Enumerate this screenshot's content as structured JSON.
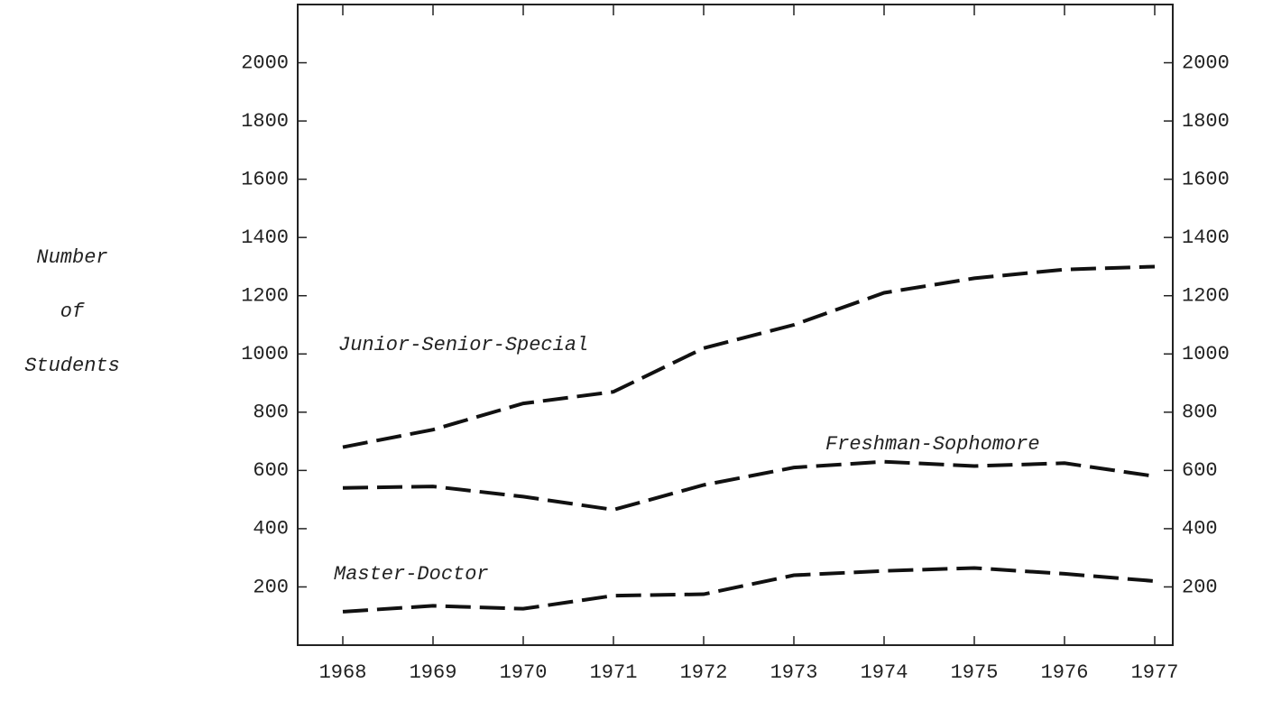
{
  "chart_data": {
    "type": "line",
    "ylabel_lines": [
      "Number",
      "of",
      "Students"
    ],
    "categories": [
      "1968",
      "1969",
      "1970",
      "1971",
      "1972",
      "1973",
      "1974",
      "1975",
      "1976",
      "1977"
    ],
    "series": [
      {
        "name": "Junior-Senior-Special",
        "color": "#111111",
        "values": [
          680,
          740,
          830,
          870,
          1020,
          1100,
          1210,
          1260,
          1290,
          1300
        ]
      },
      {
        "name": "Freshman-Sophomore",
        "color": "#111111",
        "values": [
          540,
          545,
          510,
          465,
          550,
          610,
          630,
          615,
          625,
          580
        ]
      },
      {
        "name": "Master-Doctor",
        "color": "#111111",
        "values": [
          115,
          135,
          125,
          170,
          175,
          240,
          255,
          265,
          245,
          220
        ]
      }
    ],
    "ylim": [
      0,
      2200
    ],
    "yticks": [
      200,
      400,
      600,
      800,
      1000,
      1200,
      1400,
      1600,
      1800,
      2000
    ],
    "y2lim": [
      0,
      2200
    ],
    "y2ticks": [
      200,
      400,
      600,
      800,
      1000,
      1200,
      1400,
      1600,
      1800,
      2000
    ],
    "dashed": true
  }
}
